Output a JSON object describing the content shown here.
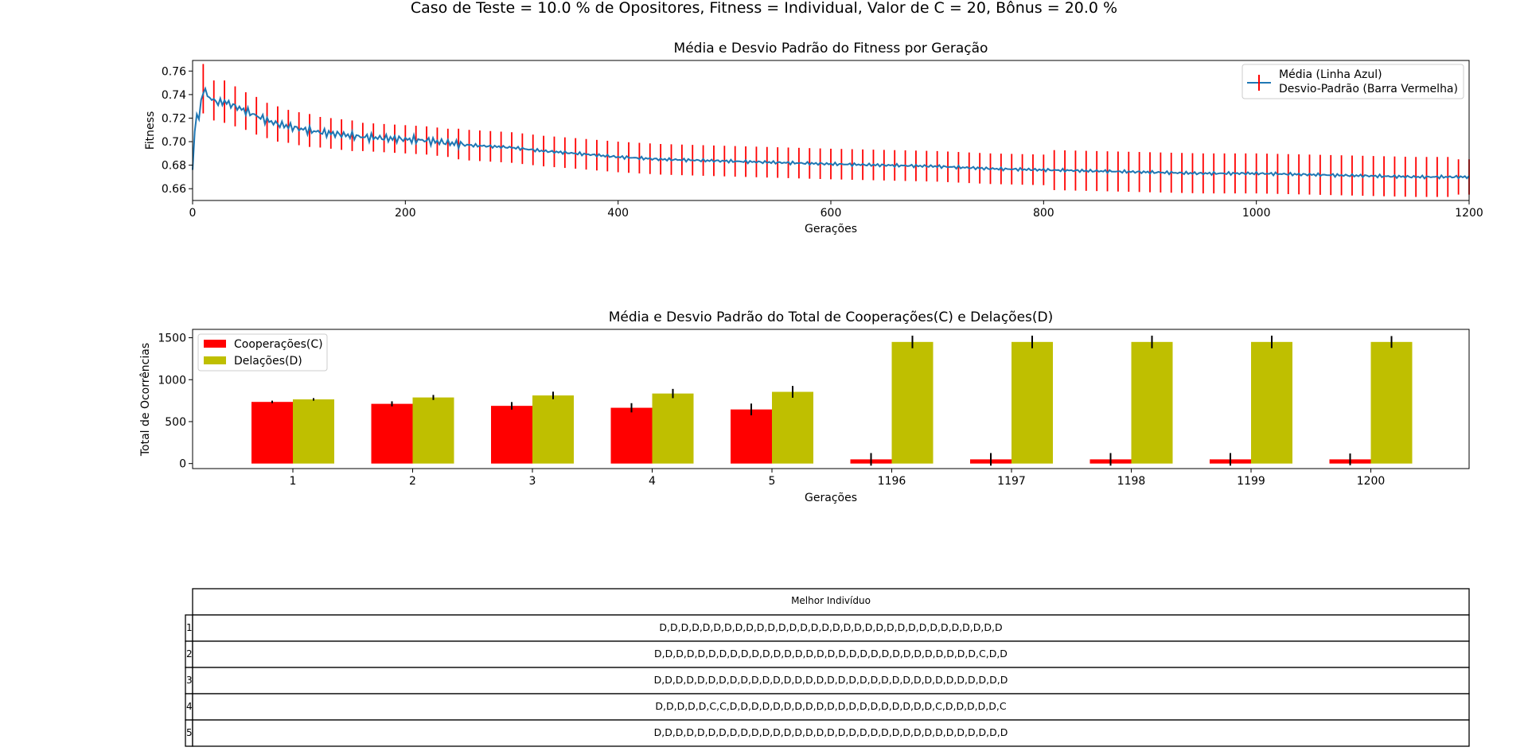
{
  "figure": {
    "suptitle": "Caso de Teste = 10.0 % de Opositores, Fitness = Individual, Valor de C = 20, Bônus = 20.0 %"
  },
  "chart_data": [
    {
      "type": "line",
      "title": "Média e Desvio Padrão do Fitness por Geração",
      "xlabel": "Gerações",
      "ylabel": "Fitness",
      "xlim": [
        0,
        1200
      ],
      "ylim": [
        0.65,
        0.769
      ],
      "xticks": [
        "0",
        "200",
        "400",
        "600",
        "800",
        "1000",
        "1200"
      ],
      "yticks": [
        "0.66",
        "0.68",
        "0.70",
        "0.72",
        "0.74",
        "0.76"
      ],
      "legend": {
        "position": "top-right",
        "entries": [
          "Média (Linha Azul)",
          "Desvio-Padrão (Barra Vermelha)"
        ]
      },
      "colors": {
        "mean_line": "#1f77b4",
        "std_bar": "#ff0000"
      },
      "series": [
        {
          "name": "Média (Linha Azul)",
          "x": [
            0,
            3,
            6,
            10,
            15,
            20,
            25,
            30,
            40,
            50,
            60,
            70,
            80,
            100,
            120,
            140,
            160,
            180,
            200,
            220,
            240,
            260,
            280,
            300,
            330,
            360,
            400,
            440,
            480,
            520,
            560,
            600,
            650,
            700,
            750,
            800,
            850,
            900,
            950,
            1000,
            1050,
            1100,
            1150,
            1200
          ],
          "values": [
            0.676,
            0.725,
            0.72,
            0.745,
            0.738,
            0.735,
            0.733,
            0.734,
            0.73,
            0.726,
            0.722,
            0.718,
            0.715,
            0.711,
            0.708,
            0.706,
            0.704,
            0.703,
            0.702,
            0.701,
            0.699,
            0.697,
            0.696,
            0.695,
            0.692,
            0.69,
            0.687,
            0.685,
            0.684,
            0.683,
            0.682,
            0.681,
            0.68,
            0.679,
            0.677,
            0.676,
            0.675,
            0.674,
            0.673,
            0.673,
            0.672,
            0.671,
            0.67,
            0.67
          ]
        }
      ],
      "error_bars": {
        "name": "Desvio-Padrão (Barra Vermelha)",
        "step": 10,
        "std": [
          0.021,
          0.017,
          0.018,
          0.017,
          0.016,
          0.016,
          0.015,
          0.015,
          0.014,
          0.014,
          0.014,
          0.013,
          0.013,
          0.013,
          0.013,
          0.012,
          0.012,
          0.012,
          0.012,
          0.012,
          0.012,
          0.012,
          0.012,
          0.012,
          0.013,
          0.013,
          0.013,
          0.013,
          0.013,
          0.013,
          0.013,
          0.013,
          0.013,
          0.013,
          0.013,
          0.013,
          0.013,
          0.013,
          0.013,
          0.013,
          0.013,
          0.013,
          0.013,
          0.013,
          0.013,
          0.013,
          0.013,
          0.013,
          0.013,
          0.013,
          0.013,
          0.013,
          0.013,
          0.013,
          0.013,
          0.013,
          0.013,
          0.013,
          0.013,
          0.013,
          0.013,
          0.013,
          0.013,
          0.013,
          0.013,
          0.013,
          0.013,
          0.013,
          0.013,
          0.013,
          0.013,
          0.013,
          0.013,
          0.013,
          0.013,
          0.013,
          0.013,
          0.013,
          0.013,
          0.013,
          0.017,
          0.017,
          0.017,
          0.017,
          0.017,
          0.017,
          0.017,
          0.017,
          0.017,
          0.017,
          0.017,
          0.017,
          0.017,
          0.017,
          0.017,
          0.017,
          0.017,
          0.017,
          0.017,
          0.017,
          0.017,
          0.017,
          0.017,
          0.017,
          0.017,
          0.017,
          0.017,
          0.017,
          0.017,
          0.017,
          0.017,
          0.017,
          0.017,
          0.017,
          0.017,
          0.017,
          0.017,
          0.017,
          0.015,
          0.015
        ]
      }
    },
    {
      "type": "bar",
      "title": "Média e Desvio Padrão do Total de Cooperações(C) e Delações(D)",
      "xlabel": "Gerações",
      "ylabel": "Total de Ocorrências",
      "ylim": [
        -60,
        1600
      ],
      "yticks": [
        "0",
        "500",
        "1000",
        "1500"
      ],
      "categories": [
        "1",
        "2",
        "3",
        "4",
        "5",
        "1196",
        "1197",
        "1198",
        "1199",
        "1200"
      ],
      "legend": {
        "position": "top-left",
        "entries": [
          "Cooperações(C)",
          "Delações(D)"
        ]
      },
      "series": [
        {
          "name": "Cooperações(C)",
          "color": "#ff0000",
          "values": [
            735,
            712,
            688,
            665,
            645,
            50,
            50,
            50,
            50,
            50
          ],
          "std": [
            15,
            30,
            45,
            55,
            70,
            75,
            75,
            75,
            75,
            70
          ]
        },
        {
          "name": "Delações(D)",
          "color": "#bfbf00",
          "values": [
            765,
            788,
            812,
            835,
            855,
            1450,
            1450,
            1450,
            1450,
            1450
          ],
          "std": [
            15,
            30,
            45,
            55,
            70,
            75,
            75,
            75,
            75,
            70
          ]
        }
      ]
    },
    {
      "type": "table",
      "column_header": "Melhor Indivíduo",
      "row_labels": [
        "1",
        "2",
        "3",
        "4",
        "5"
      ],
      "rows": [
        "D,D,D,D,D,D,D,D,D,D,D,D,D,D,D,D,D,D,D,D,D,D,D,D,D,D,D,D,D,D,D,D",
        "D,D,D,D,D,D,D,D,D,D,D,D,D,D,D,D,D,D,D,D,D,D,D,D,D,D,D,D,D,D,C,D,D",
        "D,D,D,D,D,D,D,D,D,D,D,D,D,D,D,D,D,D,D,D,D,D,D,D,D,D,D,D,D,D,D,D,D",
        "D,D,D,D,D,C,C,D,D,D,D,D,D,D,D,D,D,D,D,D,D,D,D,D,D,D,C,D,D,D,D,D,C",
        "D,D,D,D,D,D,D,D,D,D,D,D,D,D,D,D,D,D,D,D,D,D,D,D,D,D,D,D,D,D,D,D,D"
      ]
    }
  ]
}
